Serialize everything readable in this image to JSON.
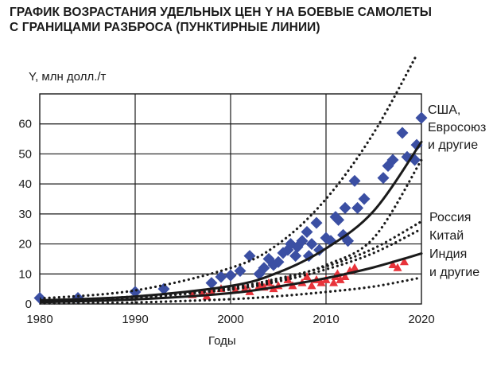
{
  "chart_data": {
    "type": "scatter",
    "title": [
      "ГРАФИК ВОЗРАСТАНИЯ УДЕЛЬНЫХ ЦЕН Y НА БОЕВЫЕ САМОЛЕТЫ",
      "С ГРАНИЦАМИ РАЗБРОСА (ПУНКТИРНЫЕ ЛИНИИ)"
    ],
    "xlabel": "Годы",
    "ylabel": "Y, млн долл./т",
    "xlim": [
      1980,
      2020
    ],
    "ylim": [
      0,
      70
    ],
    "x_ticks": [
      1980,
      1990,
      2000,
      2010,
      2020
    ],
    "y_ticks": [
      0,
      10,
      20,
      30,
      40,
      50,
      60
    ],
    "grid": true,
    "colors": {
      "group1": "#3b4fa3",
      "group2": "#e8333a",
      "lines": "#1a1a1a",
      "grid": "#1a1a1a"
    },
    "series": [
      {
        "name": [
          "США,",
          "Евросоюз",
          "и другие"
        ],
        "marker": "diamond",
        "points": [
          [
            1980,
            2
          ],
          [
            1984,
            2
          ],
          [
            1990,
            4
          ],
          [
            1993,
            5
          ],
          [
            1998,
            7
          ],
          [
            1999,
            9
          ],
          [
            2000,
            9.5
          ],
          [
            2001,
            11
          ],
          [
            2002,
            16
          ],
          [
            2003,
            10
          ],
          [
            2003.5,
            12
          ],
          [
            2004,
            15
          ],
          [
            2004.5,
            13
          ],
          [
            2005,
            14
          ],
          [
            2005.5,
            17
          ],
          [
            2006,
            18
          ],
          [
            2006.3,
            20
          ],
          [
            2006.8,
            16
          ],
          [
            2007,
            19
          ],
          [
            2007.5,
            21
          ],
          [
            2008,
            24
          ],
          [
            2008.2,
            16
          ],
          [
            2008.5,
            20
          ],
          [
            2009,
            27
          ],
          [
            2009.3,
            18
          ],
          [
            2010,
            22
          ],
          [
            2010.5,
            21
          ],
          [
            2011,
            29
          ],
          [
            2011.3,
            28
          ],
          [
            2011.8,
            23
          ],
          [
            2012,
            32
          ],
          [
            2012.3,
            21
          ],
          [
            2013,
            41
          ],
          [
            2013.3,
            32
          ],
          [
            2014,
            35
          ],
          [
            2016,
            42
          ],
          [
            2016.5,
            46
          ],
          [
            2017,
            48
          ],
          [
            2018,
            57
          ],
          [
            2018.5,
            49
          ],
          [
            2019.3,
            48
          ],
          [
            2019.5,
            53
          ],
          [
            2020,
            62
          ]
        ],
        "trend": [
          [
            1980,
            1.2
          ],
          [
            1990,
            2.5
          ],
          [
            2000,
            6
          ],
          [
            2005,
            10.5
          ],
          [
            2010,
            18.5
          ],
          [
            2015,
            31
          ],
          [
            2020,
            54
          ]
        ],
        "upper_bound": [
          [
            1980,
            1.8
          ],
          [
            1990,
            4.5
          ],
          [
            2000,
            12
          ],
          [
            2005,
            20
          ],
          [
            2010,
            35
          ],
          [
            2015,
            57
          ],
          [
            2020,
            86
          ]
        ],
        "lower_bound": [
          [
            1980,
            0.8
          ],
          [
            1990,
            2
          ],
          [
            2000,
            5
          ],
          [
            2005,
            8
          ],
          [
            2010,
            13
          ],
          [
            2015,
            22
          ],
          [
            2020,
            48
          ]
        ]
      },
      {
        "name": [
          "Россия",
          "Китай",
          "Индия",
          "и другие"
        ],
        "marker": "triangle",
        "points": [
          [
            1996,
            3
          ],
          [
            1997,
            3.5
          ],
          [
            1997.5,
            2.5
          ],
          [
            1998,
            4
          ],
          [
            1999,
            5
          ],
          [
            2000.5,
            4.5
          ],
          [
            2001.5,
            5
          ],
          [
            2002,
            4
          ],
          [
            2003,
            6
          ],
          [
            2003.5,
            5.5
          ],
          [
            2004,
            7
          ],
          [
            2004.5,
            5
          ],
          [
            2005,
            6
          ],
          [
            2006,
            8
          ],
          [
            2006.5,
            6
          ],
          [
            2007.5,
            7
          ],
          [
            2008,
            9
          ],
          [
            2008.5,
            6
          ],
          [
            2009,
            8
          ],
          [
            2009.5,
            7
          ],
          [
            2010,
            8
          ],
          [
            2010.8,
            7
          ],
          [
            2011,
            9
          ],
          [
            2011.2,
            10
          ],
          [
            2011.5,
            8
          ],
          [
            2012,
            9
          ],
          [
            2012.5,
            11
          ],
          [
            2013,
            12
          ],
          [
            2017,
            13
          ],
          [
            2017.5,
            12
          ],
          [
            2018.2,
            14
          ]
        ],
        "trend": [
          [
            1980,
            0.6
          ],
          [
            1990,
            1.5
          ],
          [
            2000,
            3.6
          ],
          [
            2005,
            5.8
          ],
          [
            2010,
            8.6
          ],
          [
            2015,
            12.2
          ],
          [
            2020,
            16.8
          ]
        ],
        "upper_bound": [
          [
            1980,
            1
          ],
          [
            1990,
            2.5
          ],
          [
            2000,
            5.5
          ],
          [
            2005,
            8.5
          ],
          [
            2010,
            12.5
          ],
          [
            2015,
            18.5
          ],
          [
            2020,
            27.5
          ]
        ],
        "lower_bound": [
          [
            1980,
            0.2
          ],
          [
            1990,
            0.5
          ],
          [
            2000,
            1.6
          ],
          [
            2005,
            2.6
          ],
          [
            2010,
            4
          ],
          [
            2015,
            5.8
          ],
          [
            2020,
            8.8
          ]
        ]
      }
    ]
  },
  "extra_curve": [
    [
      1980,
      0.9
    ],
    [
      1990,
      2.2
    ],
    [
      2000,
      4.8
    ],
    [
      2005,
      7.5
    ],
    [
      2010,
      11.5
    ],
    [
      2015,
      17
    ],
    [
      2020,
      25
    ]
  ]
}
